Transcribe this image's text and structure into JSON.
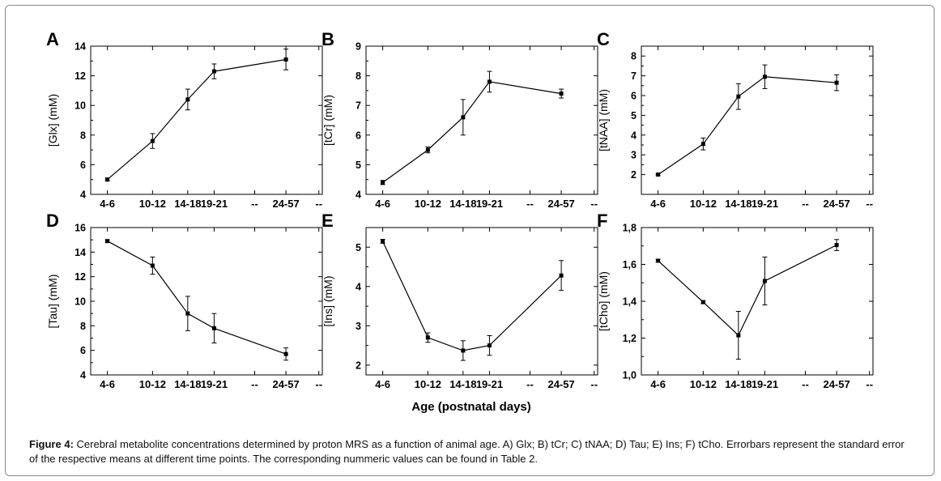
{
  "xlabel": "Age (postnatal days)",
  "caption": {
    "label": "Figure 4:",
    "text": " Cerebral metabolite concentrations determined by proton MRS as a function of animal age. A) Glx; B) tCr; C) tNAA; D) Tau; E) Ins; F) tCho. Errorbars represent the standard error of the respective means at different time points. The corresponding nummeric values can be found in Table 2."
  },
  "chart_data": [
    {
      "type": "line",
      "panel": "A",
      "ylabel": "[Glx] (mM)",
      "categories": [
        "4-6",
        "10-12",
        "14-18",
        "19-21",
        "--",
        "24-57",
        "--"
      ],
      "x": [
        "4-6",
        "10-12",
        "14-18",
        "19-21",
        "24-57"
      ],
      "values": [
        5.0,
        7.6,
        10.4,
        12.3,
        13.1
      ],
      "errors": [
        0.1,
        0.5,
        0.7,
        0.5,
        0.7
      ],
      "ylim": [
        4,
        14
      ],
      "yticks": [
        "4",
        "6",
        "8",
        "10",
        "12",
        "14"
      ],
      "ytick_values": [
        4,
        6,
        8,
        10,
        12,
        14
      ]
    },
    {
      "type": "line",
      "panel": "B",
      "ylabel": "[tCr] (mM)",
      "categories": [
        "4-6",
        "10-12",
        "14-18",
        "19-21",
        "--",
        "24-57",
        "--"
      ],
      "x": [
        "4-6",
        "10-12",
        "14-18",
        "19-21",
        "24-57"
      ],
      "values": [
        4.4,
        5.5,
        6.6,
        7.8,
        7.4
      ],
      "errors": [
        0.07,
        0.1,
        0.6,
        0.35,
        0.15
      ],
      "ylim": [
        4,
        9
      ],
      "yticks": [
        "4",
        "5",
        "6",
        "7",
        "8",
        "9"
      ],
      "ytick_values": [
        4,
        5,
        6,
        7,
        8,
        9
      ]
    },
    {
      "type": "line",
      "panel": "C",
      "ylabel": "[tNAA] (mM)",
      "categories": [
        "4-6",
        "10-12",
        "14-18",
        "19-21",
        "--",
        "24-57",
        "--"
      ],
      "x": [
        "4-6",
        "10-12",
        "14-18",
        "19-21",
        "24-57"
      ],
      "values": [
        2.0,
        3.55,
        5.95,
        6.95,
        6.65
      ],
      "errors": [
        0.05,
        0.3,
        0.65,
        0.6,
        0.4
      ],
      "ylim": [
        1,
        8.5
      ],
      "yticks": [
        "2",
        "3",
        "4",
        "5",
        "6",
        "7",
        "8"
      ],
      "ytick_values": [
        2,
        3,
        4,
        5,
        6,
        7,
        8
      ]
    },
    {
      "type": "line",
      "panel": "D",
      "ylabel": "[Tau] (mM)",
      "categories": [
        "4-6",
        "10-12",
        "14-18",
        "19-21",
        "--",
        "24-57",
        "--"
      ],
      "x": [
        "4-6",
        "10-12",
        "14-18",
        "19-21",
        "24-57"
      ],
      "values": [
        14.9,
        12.9,
        9.0,
        7.8,
        5.7
      ],
      "errors": [
        0.1,
        0.7,
        1.4,
        1.2,
        0.5
      ],
      "ylim": [
        4,
        16
      ],
      "yticks": [
        "4",
        "6",
        "8",
        "10",
        "12",
        "14",
        "16"
      ],
      "ytick_values": [
        4,
        6,
        8,
        10,
        12,
        14,
        16
      ]
    },
    {
      "type": "line",
      "panel": "E",
      "ylabel": "[Ins] (mM)",
      "categories": [
        "4-6",
        "10-12",
        "14-18",
        "19-21",
        "--",
        "24-57",
        "--"
      ],
      "x": [
        "4-6",
        "10-12",
        "14-18",
        "19-21",
        "24-57"
      ],
      "values": [
        5.15,
        2.7,
        2.37,
        2.5,
        4.28
      ],
      "errors": [
        0.05,
        0.12,
        0.25,
        0.25,
        0.38
      ],
      "ylim": [
        1.75,
        5.5
      ],
      "yticks": [
        "2",
        "3",
        "4",
        "5"
      ],
      "ytick_values": [
        2,
        3,
        4,
        5
      ]
    },
    {
      "type": "line",
      "panel": "F",
      "ylabel": "[tCho] (mM)",
      "categories": [
        "4-6",
        "10-12",
        "14-18",
        "19-21",
        "--",
        "24-57",
        "--"
      ],
      "x": [
        "4-6",
        "10-12",
        "14-18",
        "19-21",
        "24-57"
      ],
      "values": [
        1.62,
        1.395,
        1.215,
        1.51,
        1.705
      ],
      "errors": [
        0.008,
        0.008,
        0.13,
        0.13,
        0.03
      ],
      "ylim": [
        1.0,
        1.8
      ],
      "yticks": [
        "1,0",
        "1,2",
        "1,4",
        "1,6",
        "1,8"
      ],
      "ytick_values": [
        1.0,
        1.2,
        1.4,
        1.6,
        1.8
      ]
    }
  ]
}
